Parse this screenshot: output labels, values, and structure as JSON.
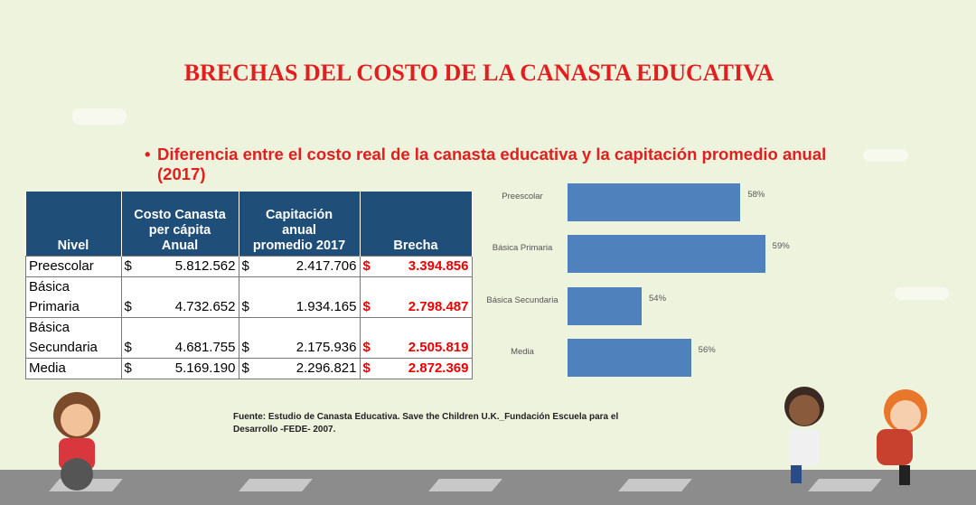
{
  "title": "BRECHAS DEL COSTO DE LA CANASTA EDUCATIVA",
  "bullet": "Diferencia entre el costo  real de la canasta educativa y la capitación promedio anual (2017)",
  "table": {
    "header": [
      [
        "Nivel"
      ],
      [
        "Costo Canasta",
        "per cápita",
        "Anual"
      ],
      [
        "Capitación",
        "anual",
        "promedio 2017"
      ],
      [
        "Brecha"
      ]
    ],
    "rows": [
      [
        "Preescolar",
        "$",
        "5.812.562",
        "$",
        "2.417.706",
        "$",
        "3.394.856"
      ],
      [
        "Básica Primaria",
        "$",
        "4.732.652",
        "$",
        "1.934.165",
        "$",
        "2.798.487"
      ],
      [
        "Básica Secundaria",
        "$",
        "4.681.755",
        "$",
        "2.175.936",
        "$",
        "2.505.819"
      ],
      [
        "Media",
        "$",
        "5.169.190",
        "$",
        "2.296.821",
        "$",
        "2.872.369"
      ]
    ]
  },
  "chart_data": {
    "type": "bar",
    "orientation": "horizontal",
    "categories": [
      "Preescolar",
      "Básica Primaria",
      "Básica Secundaria",
      "Media"
    ],
    "values": [
      58,
      59,
      54,
      56
    ],
    "value_labels": [
      "58%",
      "59%",
      "54%",
      "56%"
    ],
    "color": "#4f81bd",
    "xlim": [
      51,
      60
    ]
  },
  "source": "Fuente: Estudio de Canasta Educativa. Save the Children U.K._Fundación Escuela para el Desarrollo -FEDE- 2007."
}
